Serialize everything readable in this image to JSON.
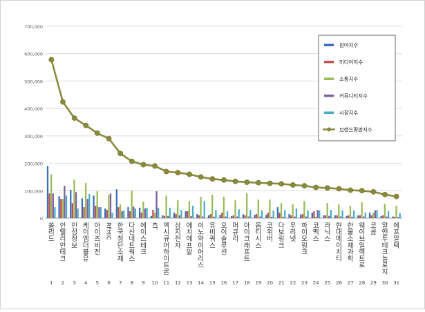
{
  "chart_data": {
    "type": "bar",
    "title": "",
    "xlabel": "",
    "ylabel": "",
    "ylim": [
      0,
      700000
    ],
    "y_ticks": [
      0,
      100000,
      200000,
      300000,
      400000,
      500000,
      600000,
      700000
    ],
    "y_tick_labels": [
      "0",
      "100,000",
      "200,000",
      "300,000",
      "400,000",
      "500,000",
      "600,000",
      "700,000"
    ],
    "grid": true,
    "legend_position": "right",
    "ranks": [
      "1",
      "2",
      "3",
      "4",
      "5",
      "6",
      "7",
      "8",
      "9",
      "10",
      "11",
      "12",
      "13",
      "14",
      "15",
      "16",
      "17",
      "18",
      "19",
      "20",
      "21",
      "22",
      "23",
      "24",
      "25",
      "26",
      "27",
      "28",
      "29",
      "30",
      "31"
    ],
    "categories": [
      "쏠리드",
      "인텔리안테크",
      "인성정보",
      "케이엠더블유",
      "아이즈비전",
      "RFHIC",
      "한국첨단소재",
      "다산네트웍스",
      "에이스테크",
      "KT",
      "엑시큐어하이트론",
      "삼지전자",
      "에치에프알",
      "이노와이어리스",
      "유비쿼스",
      "오이솔루션",
      "머큐리",
      "아이크래프트",
      "옵티시스",
      "코위버",
      "다보링크",
      "우리넷",
      "파이오링크",
      "코맥스",
      "라닉스",
      "현대에이치티",
      "한울소재과학",
      "웨이브일렉트로",
      "코콤",
      "알엔투테크놀로지",
      "에프알텍"
    ],
    "series": [
      {
        "name": "참여지수",
        "color": "#3c6eb4",
        "values": [
          190000,
          80000,
          103000,
          72000,
          82000,
          35000,
          105000,
          40000,
          38000,
          8000,
          10000,
          20000,
          25000,
          15000,
          10000,
          12000,
          8000,
          14000,
          12000,
          12000,
          40000,
          15000,
          12000,
          20000,
          10000,
          10000,
          8000,
          10000,
          20000,
          8000,
          6000
        ]
      },
      {
        "name": "미디어지수",
        "color": "#c0504d",
        "values": [
          90000,
          70000,
          55000,
          40000,
          45000,
          30000,
          40000,
          25000,
          20000,
          30000,
          8000,
          15000,
          25000,
          10000,
          15000,
          20000,
          10000,
          10000,
          15000,
          20000,
          20000,
          10000,
          15000,
          25000,
          10000,
          10000,
          10000,
          10000,
          10000,
          10000,
          5000
        ]
      },
      {
        "name": "소통지수",
        "color": "#9bbb59",
        "values": [
          160000,
          70000,
          140000,
          128000,
          98000,
          85000,
          50000,
          100000,
          60000,
          20000,
          82000,
          65000,
          62000,
          78000,
          85000,
          78000,
          65000,
          90000,
          68000,
          68000,
          55000,
          50000,
          62000,
          5000,
          55000,
          50000,
          45000,
          58000,
          20000,
          52000,
          45000
        ]
      },
      {
        "name": "커뮤니티지수",
        "color": "#7d60a0",
        "values": [
          90000,
          118000,
          95000,
          70000,
          40000,
          90000,
          25000,
          42000,
          35000,
          98000,
          8000,
          10000,
          8000,
          6000,
          5000,
          6000,
          6000,
          6000,
          6000,
          5000,
          5000,
          6000,
          6000,
          30000,
          8000,
          6000,
          5000,
          6000,
          28000,
          6000,
          4000
        ]
      },
      {
        "name": "시장지수",
        "color": "#4bacc6",
        "values": [
          40000,
          82000,
          35000,
          88000,
          40000,
          20000,
          28000,
          35000,
          38000,
          38000,
          38000,
          30000,
          45000,
          62000,
          30000,
          25000,
          32000,
          30000,
          28000,
          28000,
          30000,
          35000,
          28000,
          28000,
          30000,
          28000,
          28000,
          20000,
          30000,
          25000,
          18000
        ]
      }
    ],
    "line": {
      "name": "브랜드평판지수",
      "color": "#8a8a3c",
      "values": [
        578000,
        424000,
        365000,
        338000,
        310000,
        290000,
        236000,
        207000,
        195000,
        190000,
        170000,
        166000,
        160000,
        150000,
        143000,
        139000,
        134000,
        131000,
        129000,
        127000,
        125000,
        121000,
        118000,
        112000,
        110000,
        107000,
        102000,
        100000,
        96000,
        86000,
        79000
      ]
    }
  }
}
